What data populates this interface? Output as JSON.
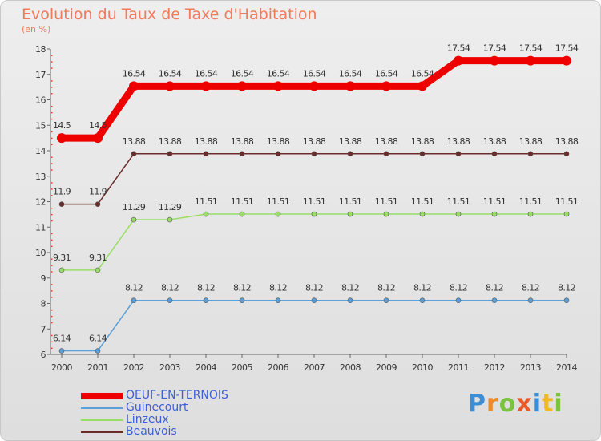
{
  "header": {
    "title": "Evolution du Taux de Taxe d'Habitation",
    "unit": "(en %)"
  },
  "logo": {
    "letters": [
      "P",
      "r",
      "o",
      "x",
      "i",
      "t",
      "i"
    ]
  },
  "chart_data": {
    "type": "line",
    "title": "Evolution du Taux de Taxe d'Habitation",
    "ylabel": "(en %)",
    "xlabel": "",
    "x": [
      "2000",
      "2001",
      "2002",
      "2003",
      "2004",
      "2005",
      "2006",
      "2007",
      "2008",
      "2009",
      "2010",
      "2011",
      "2012",
      "2013",
      "2014"
    ],
    "ylim": [
      6,
      18
    ],
    "yticks": [
      "6",
      "7",
      "8",
      "9",
      "10",
      "11",
      "12",
      "13",
      "14",
      "15",
      "16",
      "17",
      "18"
    ],
    "grid": false,
    "legend_position": "bottom-left",
    "series": [
      {
        "name": "OEUF-EN-TERNOIS",
        "color": "#ee0000",
        "emphasis": true,
        "values": [
          14.5,
          14.5,
          16.54,
          16.54,
          16.54,
          16.54,
          16.54,
          16.54,
          16.54,
          16.54,
          16.54,
          17.54,
          17.54,
          17.54,
          17.54
        ],
        "labels": [
          "14.5",
          "14.5",
          "16.54",
          "16.54",
          "16.54",
          "16.54",
          "16.54",
          "16.54",
          "16.54",
          "16.54",
          "16.54",
          "17.54",
          "17.54",
          "17.54",
          "17.54"
        ]
      },
      {
        "name": "Guinecourt",
        "color": "#5b9fd6",
        "emphasis": false,
        "values": [
          6.14,
          6.14,
          8.12,
          8.12,
          8.12,
          8.12,
          8.12,
          8.12,
          8.12,
          8.12,
          8.12,
          8.12,
          8.12,
          8.12,
          8.12
        ],
        "labels": [
          "6.14",
          "6.14",
          "8.12",
          "8.12",
          "8.12",
          "8.12",
          "8.12",
          "8.12",
          "8.12",
          "8.12",
          "8.12",
          "8.12",
          "8.12",
          "8.12",
          "8.12"
        ]
      },
      {
        "name": "Linzeux",
        "color": "#99dd66",
        "emphasis": false,
        "values": [
          9.31,
          9.31,
          11.29,
          11.29,
          11.51,
          11.51,
          11.51,
          11.51,
          11.51,
          11.51,
          11.51,
          11.51,
          11.51,
          11.51,
          11.51
        ],
        "labels": [
          "9.31",
          "9.31",
          "11.29",
          "11.29",
          "11.51",
          "11.51",
          "11.51",
          "11.51",
          "11.51",
          "11.51",
          "11.51",
          "11.51",
          "11.51",
          "11.51",
          "11.51"
        ]
      },
      {
        "name": "Beauvois",
        "color": "#6b2b2b",
        "emphasis": false,
        "values": [
          11.9,
          11.9,
          13.88,
          13.88,
          13.88,
          13.88,
          13.88,
          13.88,
          13.88,
          13.88,
          13.88,
          13.88,
          13.88,
          13.88,
          13.88
        ],
        "labels": [
          "11.9",
          "11.9",
          "13.88",
          "13.88",
          "13.88",
          "13.88",
          "13.88",
          "13.88",
          "13.88",
          "13.88",
          "13.88",
          "13.88",
          "13.88",
          "13.88",
          "13.88"
        ]
      }
    ]
  }
}
